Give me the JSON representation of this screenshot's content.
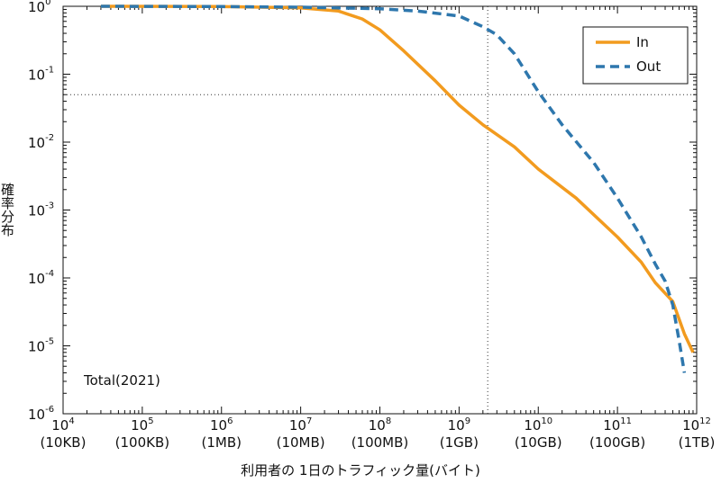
{
  "chart_data": {
    "type": "line",
    "xscale": "log",
    "yscale": "log",
    "xlim": [
      10000,
      1000000000000
    ],
    "ylim": [
      1e-06,
      1
    ],
    "xlabel": "利用者の 1日のトラフィック量(バイト)",
    "ylabel": "確率分布",
    "annotation": "Total(2021)",
    "grid": false,
    "legend_position": "top-right",
    "x_ticks": [
      {
        "base": "10",
        "exp": "4",
        "unit": "(10KB)"
      },
      {
        "base": "10",
        "exp": "5",
        "unit": "(100KB)"
      },
      {
        "base": "10",
        "exp": "6",
        "unit": "(1MB)"
      },
      {
        "base": "10",
        "exp": "7",
        "unit": "(10MB)"
      },
      {
        "base": "10",
        "exp": "8",
        "unit": "(100MB)"
      },
      {
        "base": "10",
        "exp": "9",
        "unit": "(1GB)"
      },
      {
        "base": "10",
        "exp": "10",
        "unit": "(10GB)"
      },
      {
        "base": "10",
        "exp": "11",
        "unit": "(100GB)"
      },
      {
        "base": "10",
        "exp": "12",
        "unit": "(1TB)"
      }
    ],
    "y_ticks": [
      {
        "base": "10",
        "exp": "0"
      },
      {
        "base": "10",
        "exp": "-1"
      },
      {
        "base": "10",
        "exp": "-2"
      },
      {
        "base": "10",
        "exp": "-3"
      },
      {
        "base": "10",
        "exp": "-4"
      },
      {
        "base": "10",
        "exp": "-5"
      },
      {
        "base": "10",
        "exp": "-6"
      }
    ],
    "reference_lines": {
      "x": 2300000000,
      "y": 0.05
    },
    "series": [
      {
        "name": "In",
        "color": "#f29b1f",
        "dash": "solid",
        "x": [
          30000,
          1000000,
          10000000,
          30000000,
          60000000,
          100000000,
          200000000,
          500000000,
          1000000000,
          2000000000,
          5000000000,
          10000000000,
          30000000000,
          100000000000,
          200000000000,
          300000000000,
          500000000000,
          700000000000,
          900000000000
        ],
        "y": [
          1,
          0.99,
          0.95,
          0.85,
          0.65,
          0.45,
          0.22,
          0.08,
          0.035,
          0.018,
          0.0085,
          0.004,
          0.0015,
          0.0004,
          0.00017,
          8.5e-05,
          4.5e-05,
          1.5e-05,
          8e-06
        ]
      },
      {
        "name": "Out",
        "color": "#2e77ad",
        "dash": "dashed",
        "x": [
          30000,
          1000000,
          10000000,
          100000000,
          300000000,
          1000000000,
          2000000000,
          3000000000,
          5000000000,
          10000000000,
          20000000000,
          50000000000,
          100000000000,
          200000000000,
          300000000000,
          400000000000,
          500000000000,
          600000000000,
          700000000000
        ],
        "y": [
          1,
          0.99,
          0.97,
          0.92,
          0.85,
          0.72,
          0.5,
          0.38,
          0.2,
          0.055,
          0.018,
          0.005,
          0.0015,
          0.0004,
          0.00016,
          9e-05,
          4e-05,
          1.2e-05,
          4e-06
        ]
      }
    ]
  }
}
